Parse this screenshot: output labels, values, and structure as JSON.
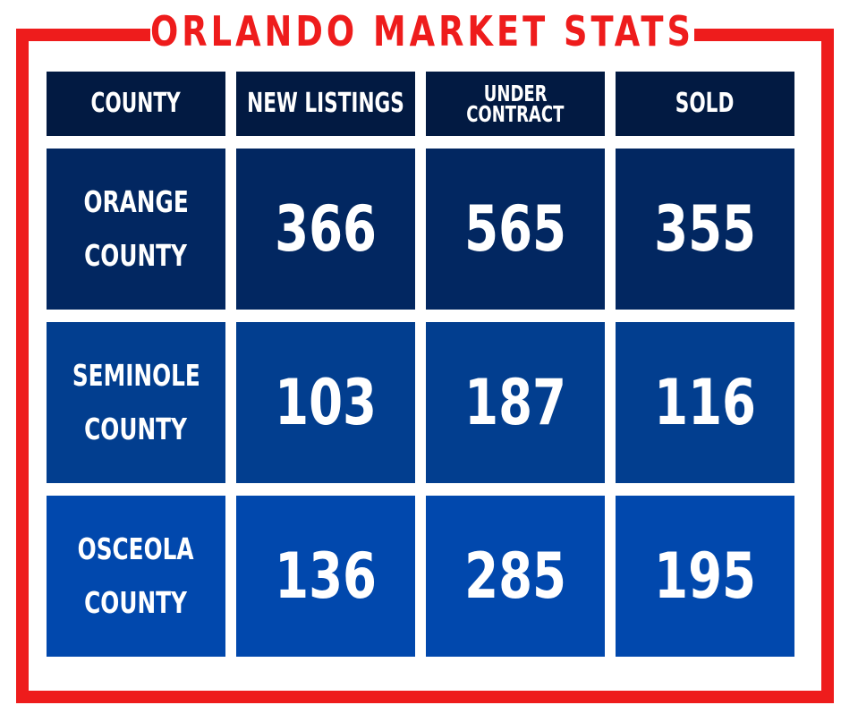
{
  "title": "ORLANDO MARKET STATS",
  "colors": {
    "frame": "#ee1c1c",
    "header_bg": "#021a42",
    "row_orange_bg": "#022761",
    "row_seminole_bg": "#023e8f",
    "row_osceola_bg": "#0148ad",
    "text": "#ffffff"
  },
  "headers": {
    "county": "COUNTY",
    "new_listings": "NEW LISTINGS",
    "under_contract_line1": "UNDER",
    "under_contract_line2": "CONTRACT",
    "sold": "SOLD"
  },
  "rows": [
    {
      "county_line1": "ORANGE",
      "county_line2": "COUNTY",
      "new_listings": "366",
      "under_contract": "565",
      "sold": "355"
    },
    {
      "county_line1": "SEMINOLE",
      "county_line2": "COUNTY",
      "new_listings": "103",
      "under_contract": "187",
      "sold": "116"
    },
    {
      "county_line1": "OSCEOLA",
      "county_line2": "COUNTY",
      "new_listings": "136",
      "under_contract": "285",
      "sold": "195"
    }
  ]
}
